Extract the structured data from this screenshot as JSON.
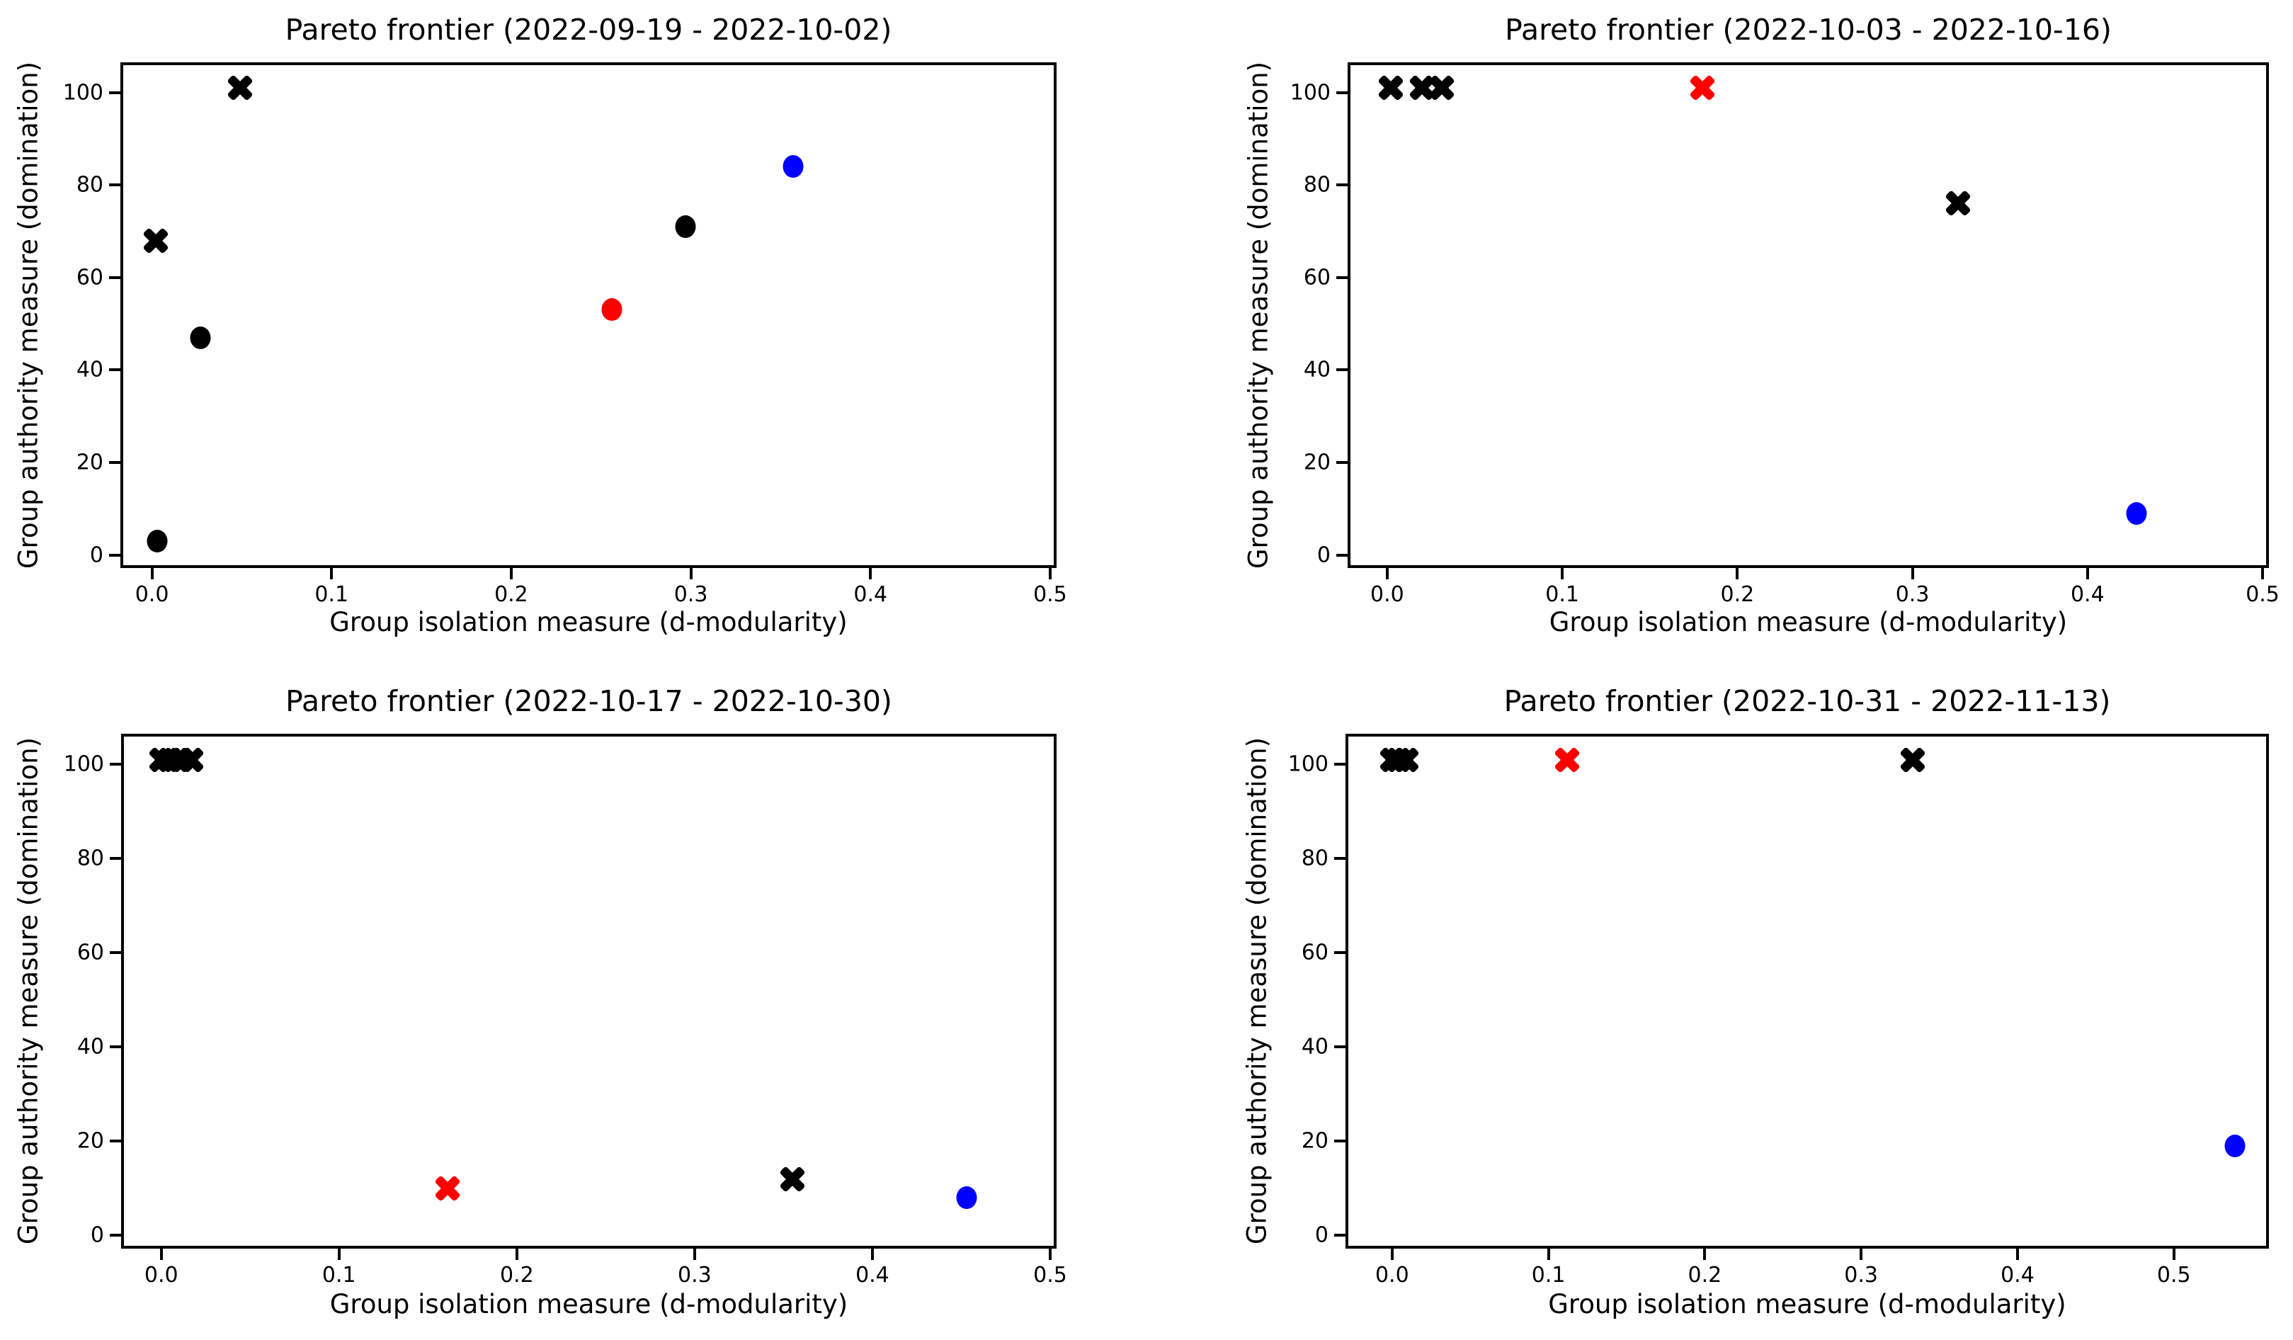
{
  "figure": {
    "background": "#ffffff",
    "marker_colors": {
      "black": "#000000",
      "red": "#ff0000",
      "blue": "#0000ff"
    }
  },
  "chart_data": [
    {
      "type": "scatter",
      "title": "Pareto frontier (2022-09-19 - 2022-10-02)",
      "xlabel": "Group isolation measure (d-modularity)",
      "ylabel": "Group authority measure (domination)",
      "xlim": [
        -0.016,
        0.502
      ],
      "ylim": [
        -2.2,
        105.9
      ],
      "grid": false,
      "legend": "none",
      "xticks": [
        {
          "v": 0.0,
          "label": "0.0"
        },
        {
          "v": 0.1,
          "label": "0.1"
        },
        {
          "v": 0.2,
          "label": "0.2"
        },
        {
          "v": 0.3,
          "label": "0.3"
        },
        {
          "v": 0.4,
          "label": "0.4"
        },
        {
          "v": 0.5,
          "label": "0.5"
        }
      ],
      "yticks": [
        {
          "v": 0,
          "label": "0"
        },
        {
          "v": 20,
          "label": "20"
        },
        {
          "v": 40,
          "label": "40"
        },
        {
          "v": 60,
          "label": "60"
        },
        {
          "v": 80,
          "label": "80"
        },
        {
          "v": 100,
          "label": "100"
        }
      ],
      "points": [
        {
          "x": 0.049,
          "y": 101,
          "marker": "X",
          "color": "#000000"
        },
        {
          "x": 0.002,
          "y": 68,
          "marker": "X",
          "color": "#000000"
        },
        {
          "x": 0.027,
          "y": 47,
          "marker": "o",
          "color": "#000000"
        },
        {
          "x": 0.003,
          "y": 3,
          "marker": "o",
          "color": "#000000"
        },
        {
          "x": 0.256,
          "y": 53,
          "marker": "o",
          "color": "#ff0000"
        },
        {
          "x": 0.297,
          "y": 71,
          "marker": "o",
          "color": "#000000"
        },
        {
          "x": 0.357,
          "y": 84,
          "marker": "o",
          "color": "#0000ff"
        }
      ]
    },
    {
      "type": "scatter",
      "title": "Pareto frontier (2022-10-03 - 2022-10-16)",
      "xlabel": "Group isolation measure (d-modularity)",
      "ylabel": "Group authority measure (domination)",
      "xlim": [
        -0.021,
        0.502
      ],
      "ylim": [
        -2.2,
        105.9
      ],
      "grid": false,
      "legend": "none",
      "xticks": [
        {
          "v": 0.0,
          "label": "0.0"
        },
        {
          "v": 0.1,
          "label": "0.1"
        },
        {
          "v": 0.2,
          "label": "0.2"
        },
        {
          "v": 0.3,
          "label": "0.3"
        },
        {
          "v": 0.4,
          "label": "0.4"
        },
        {
          "v": 0.5,
          "label": "0.5"
        }
      ],
      "yticks": [
        {
          "v": 0,
          "label": "0"
        },
        {
          "v": 20,
          "label": "20"
        },
        {
          "v": 40,
          "label": "40"
        },
        {
          "v": 60,
          "label": "60"
        },
        {
          "v": 80,
          "label": "80"
        },
        {
          "v": 100,
          "label": "100"
        }
      ],
      "points": [
        {
          "x": 0.002,
          "y": 101,
          "marker": "X",
          "color": "#000000"
        },
        {
          "x": 0.02,
          "y": 101,
          "marker": "X",
          "color": "#000000"
        },
        {
          "x": 0.031,
          "y": 101,
          "marker": "X",
          "color": "#000000"
        },
        {
          "x": 0.18,
          "y": 101,
          "marker": "X",
          "color": "#ff0000"
        },
        {
          "x": 0.326,
          "y": 76,
          "marker": "X",
          "color": "#000000"
        },
        {
          "x": 0.428,
          "y": 9,
          "marker": "o",
          "color": "#0000ff"
        }
      ]
    },
    {
      "type": "scatter",
      "title": "Pareto frontier (2022-10-17 - 2022-10-30)",
      "xlabel": "Group isolation measure (d-modularity)",
      "ylabel": "Group authority measure (domination)",
      "xlim": [
        -0.021,
        0.502
      ],
      "ylim": [
        -2.2,
        105.9
      ],
      "grid": false,
      "legend": "none",
      "xticks": [
        {
          "v": 0.0,
          "label": "0.0"
        },
        {
          "v": 0.1,
          "label": "0.1"
        },
        {
          "v": 0.2,
          "label": "0.2"
        },
        {
          "v": 0.3,
          "label": "0.3"
        },
        {
          "v": 0.4,
          "label": "0.4"
        },
        {
          "v": 0.5,
          "label": "0.5"
        }
      ],
      "yticks": [
        {
          "v": 0,
          "label": "0"
        },
        {
          "v": 20,
          "label": "20"
        },
        {
          "v": 40,
          "label": "40"
        },
        {
          "v": 60,
          "label": "60"
        },
        {
          "v": 80,
          "label": "80"
        },
        {
          "v": 100,
          "label": "100"
        }
      ],
      "points": [
        {
          "x": 0.0,
          "y": 101,
          "marker": "X",
          "color": "#000000"
        },
        {
          "x": 0.005,
          "y": 101,
          "marker": "X",
          "color": "#000000"
        },
        {
          "x": 0.011,
          "y": 101,
          "marker": "X",
          "color": "#000000"
        },
        {
          "x": 0.017,
          "y": 101,
          "marker": "X",
          "color": "#000000"
        },
        {
          "x": 0.161,
          "y": 10,
          "marker": "X",
          "color": "#ff0000"
        },
        {
          "x": 0.355,
          "y": 12,
          "marker": "X",
          "color": "#000000"
        },
        {
          "x": 0.453,
          "y": 8,
          "marker": "o",
          "color": "#0000ff"
        }
      ]
    },
    {
      "type": "scatter",
      "title": "Pareto frontier (2022-10-31 - 2022-11-13)",
      "xlabel": "Group isolation measure (d-modularity)",
      "ylabel": "Group authority measure (domination)",
      "xlim": [
        -0.028,
        0.559
      ],
      "ylim": [
        -2.2,
        105.9
      ],
      "grid": false,
      "legend": "none",
      "xticks": [
        {
          "v": 0.0,
          "label": "0.0"
        },
        {
          "v": 0.1,
          "label": "0.1"
        },
        {
          "v": 0.2,
          "label": "0.2"
        },
        {
          "v": 0.3,
          "label": "0.3"
        },
        {
          "v": 0.4,
          "label": "0.4"
        },
        {
          "v": 0.5,
          "label": "0.5"
        }
      ],
      "yticks": [
        {
          "v": 0,
          "label": "0"
        },
        {
          "v": 20,
          "label": "20"
        },
        {
          "v": 40,
          "label": "40"
        },
        {
          "v": 60,
          "label": "60"
        },
        {
          "v": 80,
          "label": "80"
        },
        {
          "v": 100,
          "label": "100"
        }
      ],
      "points": [
        {
          "x": 0.0,
          "y": 101,
          "marker": "X",
          "color": "#000000"
        },
        {
          "x": 0.004,
          "y": 101,
          "marker": "X",
          "color": "#000000"
        },
        {
          "x": 0.009,
          "y": 101,
          "marker": "X",
          "color": "#000000"
        },
        {
          "x": 0.112,
          "y": 101,
          "marker": "X",
          "color": "#ff0000"
        },
        {
          "x": 0.333,
          "y": 101,
          "marker": "X",
          "color": "#000000"
        },
        {
          "x": 0.539,
          "y": 19,
          "marker": "o",
          "color": "#0000ff"
        }
      ]
    }
  ]
}
